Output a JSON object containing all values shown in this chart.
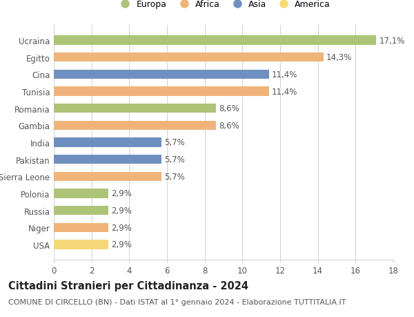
{
  "countries": [
    "USA",
    "Niger",
    "Russia",
    "Polonia",
    "Sierra Leone",
    "Pakistan",
    "India",
    "Gambia",
    "Romania",
    "Tunisia",
    "Cina",
    "Egitto",
    "Ucraina"
  ],
  "values": [
    2.9,
    2.9,
    2.9,
    2.9,
    5.7,
    5.7,
    5.7,
    8.6,
    8.6,
    11.4,
    11.4,
    14.3,
    17.1
  ],
  "labels": [
    "2,9%",
    "2,9%",
    "2,9%",
    "2,9%",
    "5,7%",
    "5,7%",
    "5,7%",
    "8,6%",
    "8,6%",
    "11,4%",
    "11,4%",
    "14,3%",
    "17,1%"
  ],
  "continents": [
    "America",
    "Africa",
    "Europa",
    "Europa",
    "Africa",
    "Asia",
    "Asia",
    "Africa",
    "Europa",
    "Africa",
    "Asia",
    "Africa",
    "Europa"
  ],
  "colors": {
    "Europa": "#adc478",
    "Africa": "#f0b47a",
    "Asia": "#6e8fbf",
    "America": "#f5d878"
  },
  "xlim": [
    0,
    18
  ],
  "xticks": [
    0,
    2,
    4,
    6,
    8,
    10,
    12,
    14,
    16,
    18
  ],
  "title": "Cittadini Stranieri per Cittadinanza - 2024",
  "subtitle": "COMUNE DI CIRCELLO (BN) - Dati ISTAT al 1° gennaio 2024 - Elaborazione TUTTITALIA.IT",
  "background_color": "#ffffff",
  "grid_color": "#d0d0d0",
  "bar_height": 0.55,
  "label_fontsize": 8.5,
  "tick_fontsize": 8.5,
  "title_fontsize": 10.5,
  "subtitle_fontsize": 8,
  "legend_order": [
    "Europa",
    "Africa",
    "Asia",
    "America"
  ]
}
